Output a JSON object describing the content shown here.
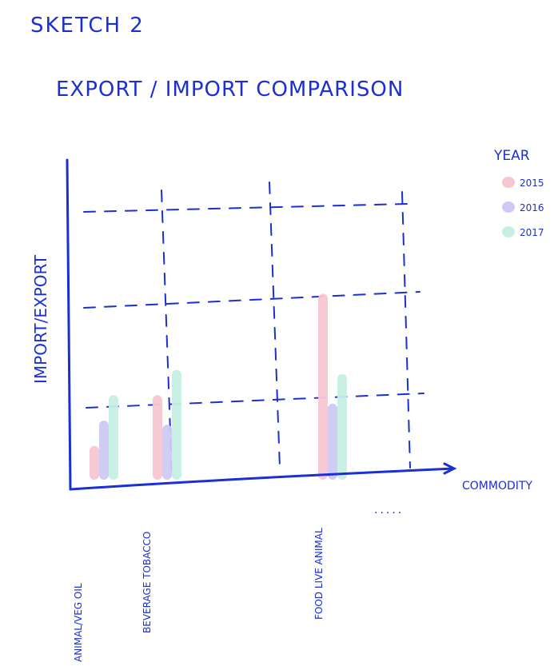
{
  "header": {
    "sketch_label": "SKETCH 2",
    "chart_title": "EXPORT / IMPORT COMPARISON"
  },
  "chart_data": {
    "type": "bar",
    "title": "EXPORT / IMPORT COMPARISON",
    "xlabel": "COMMODITY",
    "ylabel": "IMPORT/EXPORT",
    "categories": [
      "ANIMAL/VEG OIL",
      "BEVERAGE TOBACCO",
      "FOOD LIVE ANIMAL",
      "....."
    ],
    "series": [
      {
        "name": "2015",
        "values": [
          40,
          100,
          220,
          null
        ]
      },
      {
        "name": "2016",
        "values": [
          70,
          65,
          90,
          null
        ]
      },
      {
        "name": "2017",
        "values": [
          100,
          130,
          125,
          null
        ]
      }
    ],
    "legend_title": "YEAR",
    "legend_position": "top-right",
    "grid": true,
    "ylim": [
      0,
      350
    ],
    "colors": {
      "ink": "#1b2fd6",
      "2015": "#f7c6d3",
      "2016": "#cfc9f3",
      "2017": "#c6efe4"
    }
  }
}
